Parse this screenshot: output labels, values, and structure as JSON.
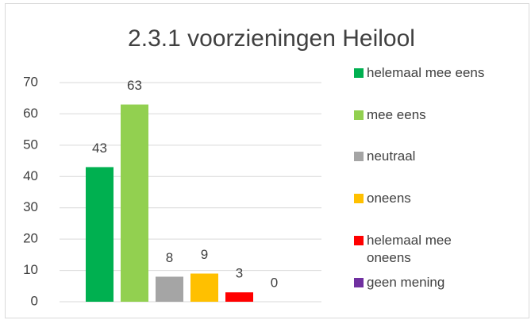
{
  "chart_data": {
    "type": "bar",
    "title": "2.3.1 voorzieningen Heilool",
    "series": [
      {
        "name": "helemaal mee eens",
        "color": "#00b050",
        "values": [
          43
        ]
      },
      {
        "name": "mee eens",
        "color": "#92d050",
        "values": [
          63
        ]
      },
      {
        "name": "neutraal",
        "color": "#a5a5a5",
        "values": [
          8
        ]
      },
      {
        "name": "oneens",
        "color": "#ffc000",
        "values": [
          9
        ]
      },
      {
        "name": "helemaal mee oneens",
        "color": "#ff0000",
        "values": [
          3
        ]
      },
      {
        "name": "geen mening",
        "color": "#7030a0",
        "values": [
          0
        ]
      }
    ],
    "ylim": [
      0,
      70
    ],
    "yticks": [
      0,
      10,
      20,
      30,
      40,
      50,
      60,
      70
    ],
    "grid": true,
    "legend": "right"
  }
}
